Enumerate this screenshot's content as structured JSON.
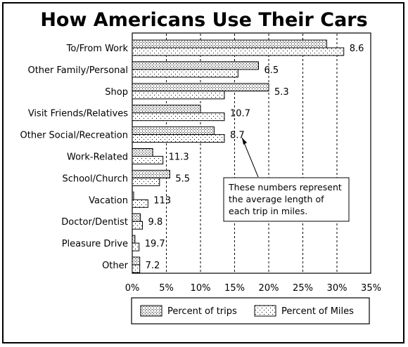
{
  "chart_data": {
    "type": "bar",
    "orientation": "horizontal",
    "title": "How Americans Use Their Cars",
    "categories": [
      "To/From Work",
      "Other Family/Personal",
      "Shop",
      "Visit Friends/Relatives",
      "Other Social/Recreation",
      "Work-Related",
      "School/Church",
      "Vacation",
      "Doctor/Dentist",
      "Pleasure Drive",
      "Other"
    ],
    "series": [
      {
        "name": "Percent of trips",
        "pattern": "dense-dots",
        "values": [
          28.5,
          18.5,
          20,
          10,
          12,
          3,
          5.5,
          0.2,
          1.2,
          0.4,
          1.1
        ]
      },
      {
        "name": "Percent of Miles",
        "pattern": "sparse-dots",
        "values": [
          31,
          15.5,
          13.5,
          13.5,
          13.5,
          4.5,
          4,
          2.3,
          1.5,
          1,
          1.1
        ]
      }
    ],
    "avg_trip_length_labels": [
      "8.6",
      "6.5",
      "5.3",
      "10.7",
      "8.7",
      "11.3",
      "5.5",
      "113",
      "9.8",
      "19.7",
      "7.2"
    ],
    "x_ticks": [
      "0%",
      "5%",
      "10%",
      "15%",
      "20%",
      "25%",
      "30%",
      "35%"
    ],
    "xlim": [
      0,
      35
    ],
    "grid": "vertical dashed",
    "legend_position": "bottom",
    "annotation": {
      "lines": [
        "These numbers represent",
        "the average length of",
        "each trip in miles."
      ],
      "points_to": "Other Social/Recreation"
    }
  }
}
